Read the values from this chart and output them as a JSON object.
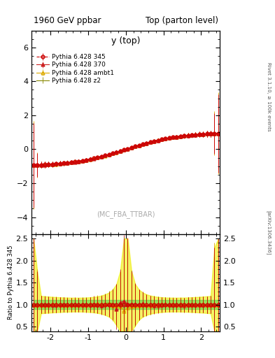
{
  "title_left": "1960 GeV ppbar",
  "title_right": "Top (parton level)",
  "ylabel_ratio": "Ratio to Pythia 6.428 345",
  "right_label": "Rivet 3.1.10, ≥ 100k events",
  "arxiv_label": "[arXiv:1306.3436]",
  "mcfba_label": "(MC_FBA_TTBAR)",
  "plot_label": "y (top)",
  "xlim": [
    -2.5,
    2.5
  ],
  "ylim_main": [
    -5.0,
    7.0
  ],
  "ylim_ratio": [
    0.4,
    2.6
  ],
  "yticks_main": [
    -4,
    -2,
    0,
    2,
    4,
    6
  ],
  "yticks_ratio": [
    0.5,
    1.0,
    1.5,
    2.0,
    2.5
  ],
  "xticks": [
    -2,
    -1,
    0,
    1,
    2
  ],
  "series": [
    {
      "label": "Pythia 6.428 345",
      "color": "#cc0000",
      "linestyle": "--",
      "marker": "o",
      "markersize": 3.5,
      "fillstyle": "none",
      "linewidth": 0.8,
      "is_reference": true
    },
    {
      "label": "Pythia 6.428 370",
      "color": "#cc2222",
      "linestyle": "-",
      "marker": "^",
      "markersize": 3.5,
      "fillstyle": "full",
      "linewidth": 0.8,
      "is_reference": false
    },
    {
      "label": "Pythia 6.428 ambt1",
      "color": "#ddaa00",
      "linestyle": "-",
      "marker": "^",
      "markersize": 3.5,
      "fillstyle": "none",
      "linewidth": 0.8,
      "is_reference": false
    },
    {
      "label": "Pythia 6.428 z2",
      "color": "#888800",
      "linestyle": "-",
      "marker": null,
      "markersize": 2,
      "fillstyle": "full",
      "linewidth": 0.8,
      "is_reference": false
    }
  ],
  "band_green": {
    "color": "#44cc44",
    "alpha": 0.5
  },
  "band_yellow": {
    "color": "#eeee00",
    "alpha": 0.6
  },
  "ratio_line_color": "#cc0000",
  "background_color": "#ffffff"
}
